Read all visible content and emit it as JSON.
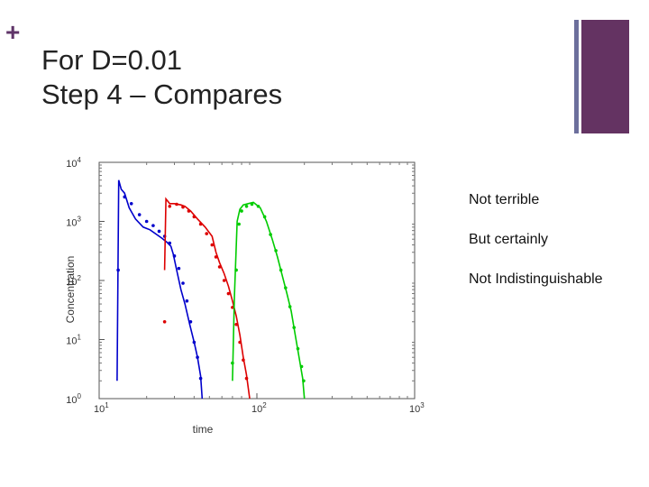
{
  "slide": {
    "title_line1": "For D=0.01",
    "title_line2": "Step 4 – Compares",
    "notes": [
      "Not terrible",
      "But certainly",
      "Not Indistinguishable"
    ],
    "accent_colors": {
      "plus": "#5f3468",
      "thin_bar": "#6c6f9c",
      "thick_bar": "#643362"
    }
  },
  "chart_data": {
    "type": "line",
    "title": "",
    "xlabel": "time",
    "ylabel": "Concentration",
    "x_scale": "log",
    "y_scale": "log",
    "xlim": [
      10,
      1000
    ],
    "ylim": [
      1,
      10000
    ],
    "x_ticks": [
      {
        "base": "10",
        "exp": "1"
      },
      {
        "base": "10",
        "exp": "2"
      },
      {
        "base": "10",
        "exp": "3"
      }
    ],
    "y_ticks": [
      {
        "base": "10",
        "exp": "0"
      },
      {
        "base": "10",
        "exp": "1"
      },
      {
        "base": "10",
        "exp": "2"
      },
      {
        "base": "10",
        "exp": "3"
      },
      {
        "base": "10",
        "exp": "4"
      }
    ],
    "series": [
      {
        "color": "#0000cc",
        "line": [
          [
            13.0,
            2
          ],
          [
            13.3,
            5000
          ],
          [
            13.8,
            3500
          ],
          [
            14.5,
            3000
          ],
          [
            15.5,
            1700
          ],
          [
            17,
            1100
          ],
          [
            19,
            800
          ],
          [
            21,
            720
          ],
          [
            25,
            520
          ],
          [
            27,
            440
          ],
          [
            28.5,
            380
          ],
          [
            29.5,
            280
          ],
          [
            31,
            150
          ],
          [
            33,
            70
          ],
          [
            35,
            40
          ],
          [
            37.5,
            18
          ],
          [
            40,
            9
          ],
          [
            42,
            5
          ],
          [
            44,
            2.4
          ],
          [
            45,
            1
          ]
        ],
        "points": [
          [
            13.2,
            150
          ],
          [
            14.5,
            2600
          ],
          [
            16,
            2000
          ],
          [
            18,
            1300
          ],
          [
            20,
            1000
          ],
          [
            22,
            850
          ],
          [
            24,
            680
          ],
          [
            26,
            560
          ],
          [
            28,
            430
          ],
          [
            30,
            260
          ],
          [
            32,
            160
          ],
          [
            34,
            90
          ],
          [
            36,
            45
          ],
          [
            38,
            20
          ],
          [
            40,
            9
          ],
          [
            42,
            5
          ],
          [
            44,
            2.2
          ]
        ]
      },
      {
        "color": "#dd0000",
        "line": [
          [
            26,
            150
          ],
          [
            26.5,
            2400
          ],
          [
            28,
            2000
          ],
          [
            30,
            2000
          ],
          [
            33,
            1900
          ],
          [
            35,
            1800
          ],
          [
            38,
            1500
          ],
          [
            42,
            1100
          ],
          [
            47,
            800
          ],
          [
            52,
            560
          ],
          [
            55,
            300
          ],
          [
            58,
            200
          ],
          [
            62,
            130
          ],
          [
            66,
            80
          ],
          [
            70,
            45
          ],
          [
            74,
            25
          ],
          [
            78,
            12
          ],
          [
            82,
            5
          ],
          [
            86,
            2.5
          ],
          [
            90,
            1
          ]
        ],
        "points": [
          [
            26,
            20
          ],
          [
            28,
            1800
          ],
          [
            31,
            1950
          ],
          [
            34,
            1750
          ],
          [
            37,
            1500
          ],
          [
            40,
            1200
          ],
          [
            44,
            900
          ],
          [
            48,
            620
          ],
          [
            52,
            400
          ],
          [
            55,
            250
          ],
          [
            58,
            170
          ],
          [
            62,
            100
          ],
          [
            66,
            60
          ],
          [
            70,
            35
          ],
          [
            74,
            18
          ],
          [
            78,
            9
          ],
          [
            82,
            4.5
          ],
          [
            86,
            2.2
          ]
        ]
      },
      {
        "color": "#00cc00",
        "line": [
          [
            70,
            2
          ],
          [
            72,
            50
          ],
          [
            75,
            1000
          ],
          [
            78,
            1600
          ],
          [
            82,
            1900
          ],
          [
            88,
            2000
          ],
          [
            95,
            2100
          ],
          [
            105,
            1700
          ],
          [
            115,
            1000
          ],
          [
            125,
            500
          ],
          [
            135,
            250
          ],
          [
            145,
            120
          ],
          [
            155,
            60
          ],
          [
            165,
            30
          ],
          [
            175,
            12
          ],
          [
            185,
            5
          ],
          [
            195,
            2.2
          ],
          [
            200,
            1
          ]
        ],
        "points": [
          [
            70,
            4
          ],
          [
            74,
            150
          ],
          [
            77,
            900
          ],
          [
            80,
            1500
          ],
          [
            86,
            1800
          ],
          [
            93,
            1950
          ],
          [
            102,
            1800
          ],
          [
            112,
            1200
          ],
          [
            122,
            600
          ],
          [
            132,
            320
          ],
          [
            142,
            150
          ],
          [
            152,
            75
          ],
          [
            162,
            36
          ],
          [
            172,
            16
          ],
          [
            182,
            7
          ],
          [
            192,
            3.5
          ],
          [
            198,
            2
          ]
        ]
      }
    ]
  }
}
